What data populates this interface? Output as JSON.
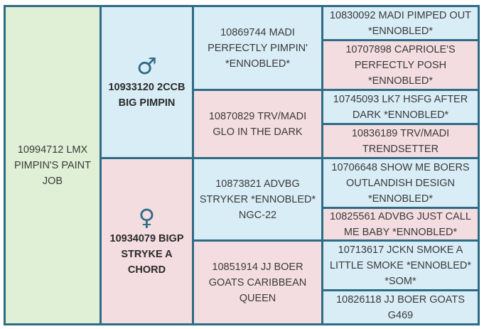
{
  "subject": {
    "name": "10994712 LMX PIMPIN'S PAINT JOB"
  },
  "sire": {
    "symbol": "♂",
    "name": "10933120 2CCB BIG PIMPIN"
  },
  "dam": {
    "symbol": "♀",
    "name": "10934079 BIGP STRYKE A CHORD"
  },
  "grandparents": {
    "sire_sire": "10869744 MADI PERFECTLY PIMPIN' *ENNOBLED*",
    "sire_dam": "10870829 TRV/MADI GLO IN THE DARK",
    "dam_sire": "10873821 ADVBG STRYKER *ENNOBLED* NGC-22",
    "dam_dam": "10851914 JJ BOER GOATS CARIBBEAN QUEEN"
  },
  "great_grandparents": [
    "10830092 MADI PIMPED OUT *ENNOBLED*",
    "10707898 CAPRIOLE'S PERFECTLY POSH *ENNOBLED*",
    "10745093 LK7 HSFG AFTER DARK *ENNOBLED*",
    "10836189 TRV/MADI TRENDSETTER",
    "10706648 SHOW ME BOERS OUTLANDISH DESIGN *ENNOBLED*",
    "10825561 ADVBG JUST CALL ME BABY *ENNOBLED*",
    "10713617 JCKN SMOKE A LITTLE SMOKE *ENNOBLED* *SOM*",
    "10826118 JJ BOER GOATS G469"
  ],
  "colors": {
    "border": "#2e6b85",
    "subject": "#dff0d6",
    "male": "#d9edf7",
    "female": "#f4dde0"
  }
}
